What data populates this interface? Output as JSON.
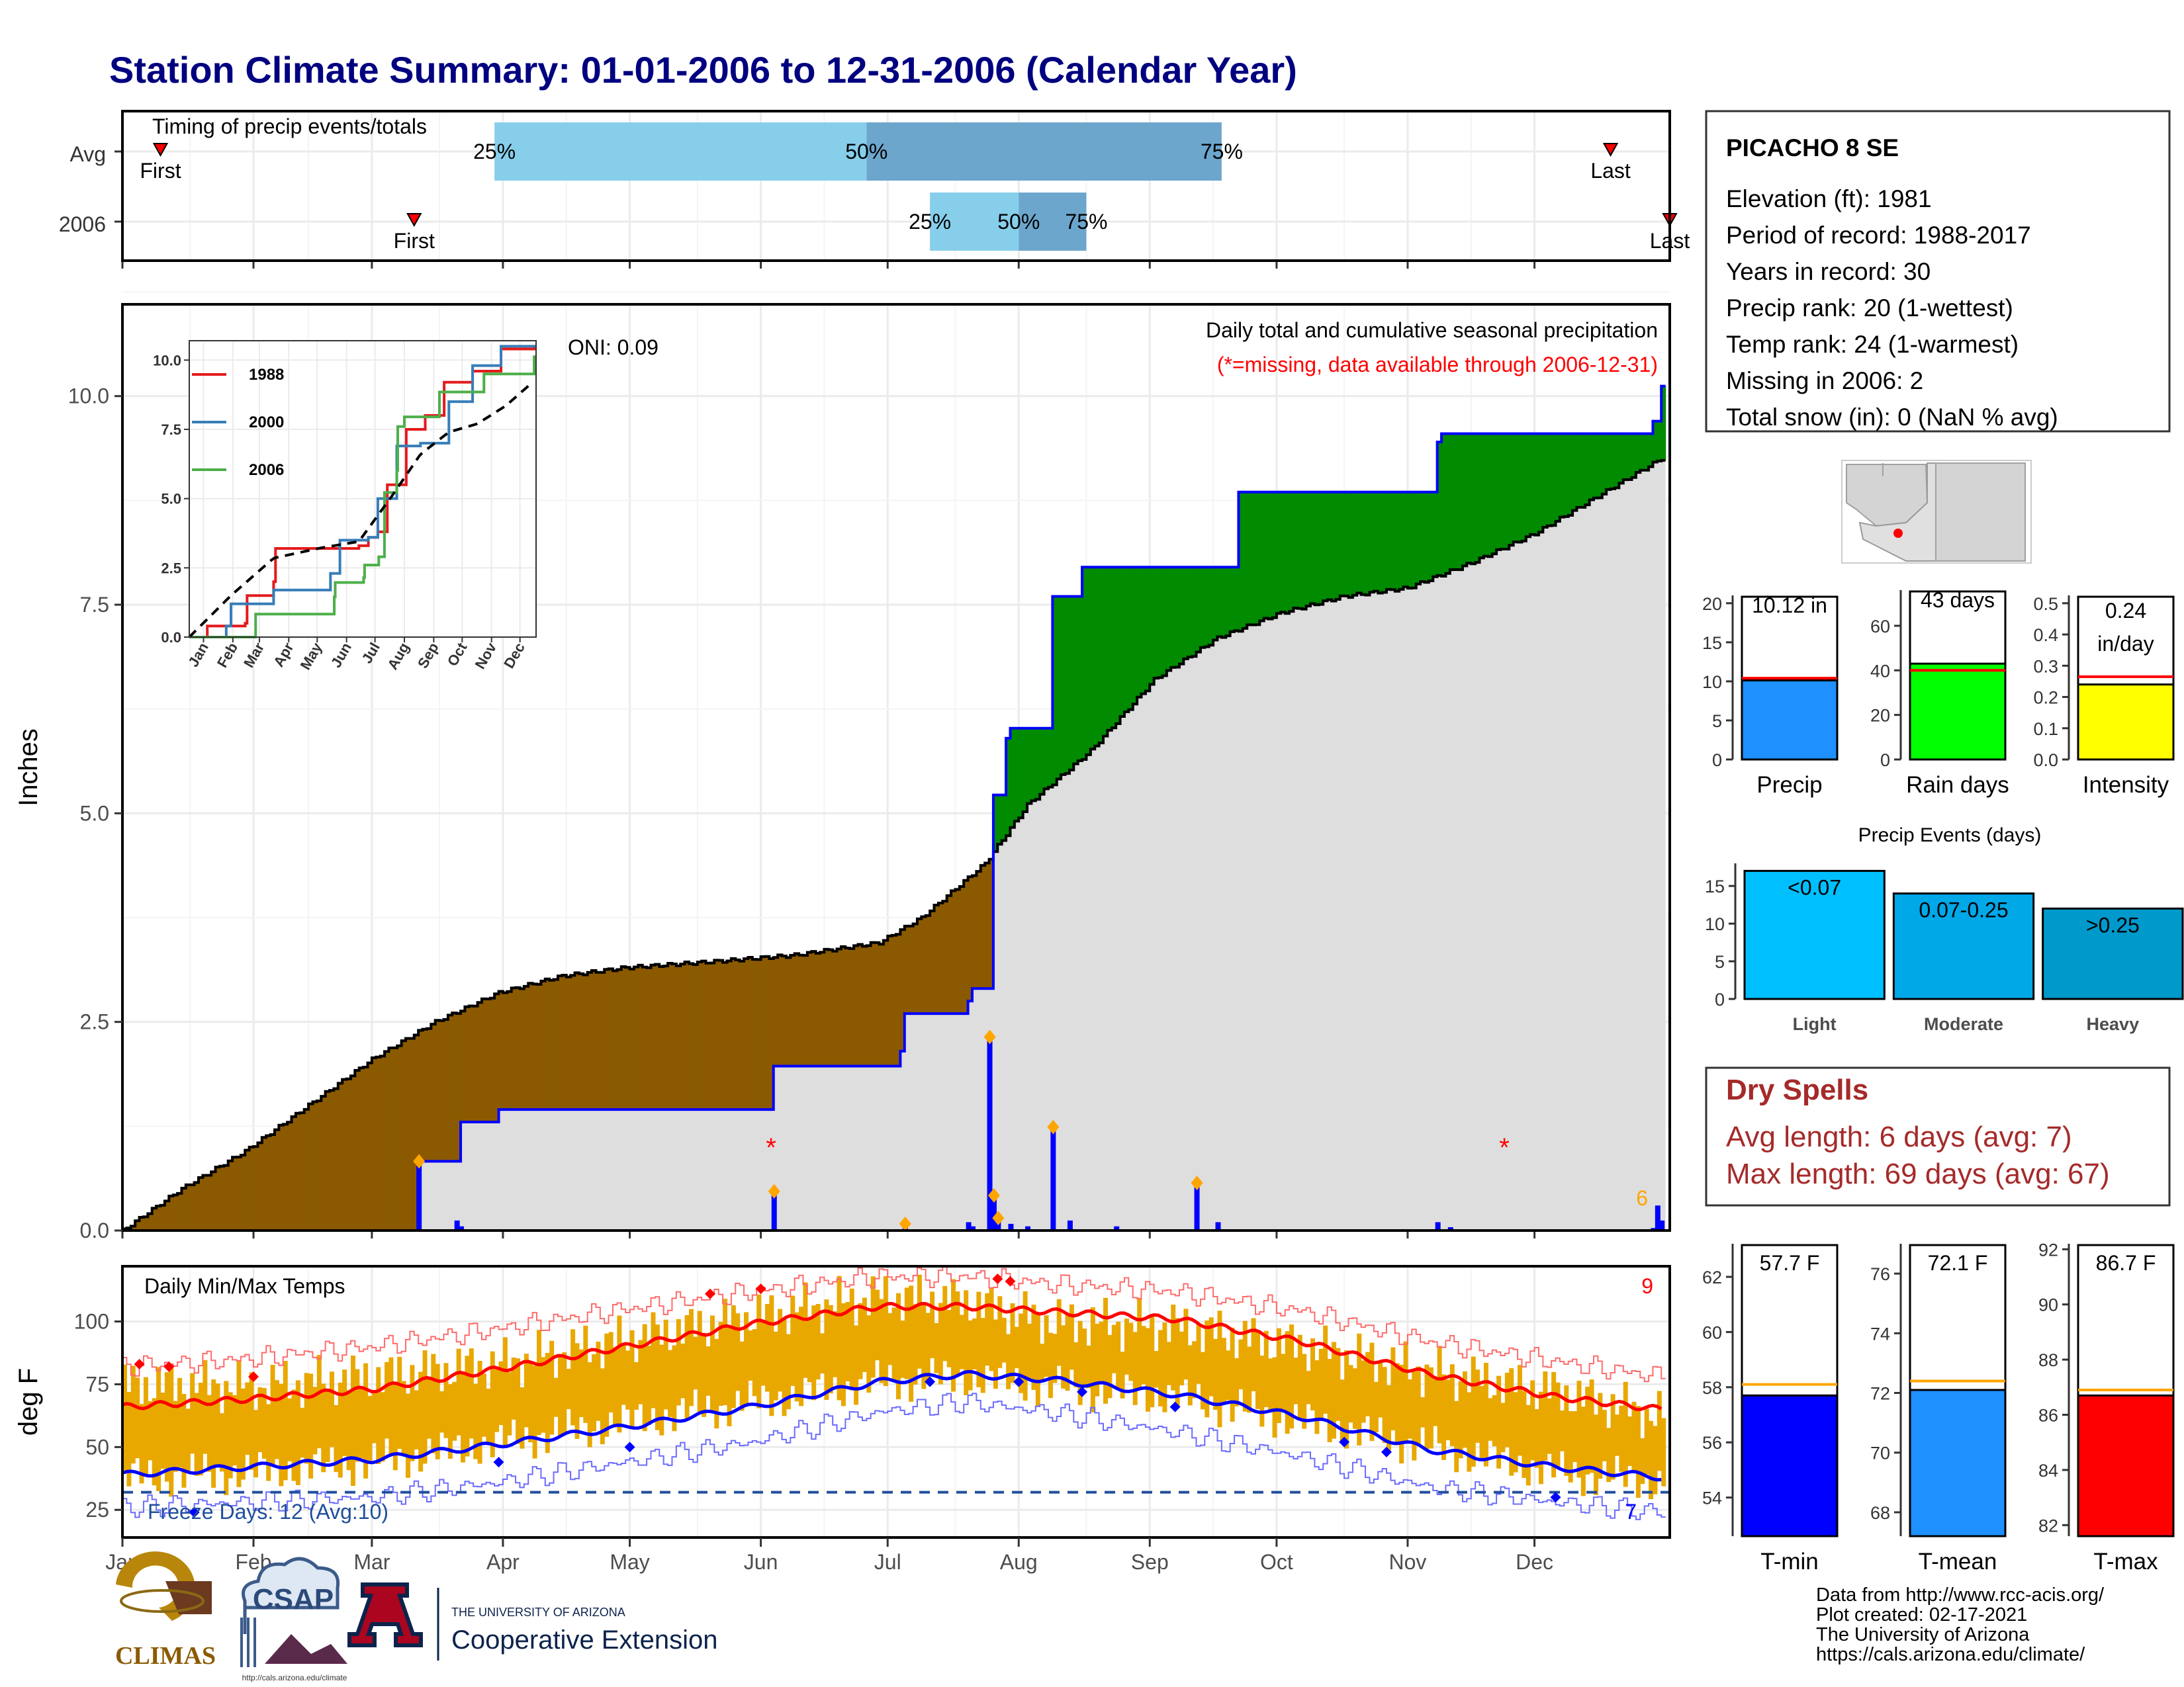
{
  "title": "Station Climate Summary: 01-01-2006 to 12-31-2006 (Calendar Year)",
  "timing_panel": {
    "title": "Timing of precip events/totals",
    "rows": [
      {
        "label": "Avg",
        "first_label": "First",
        "last_label": "Last",
        "first_doy": 10,
        "last_doy": 353,
        "q25_doy": 89,
        "q50_doy": 177,
        "q75_doy": 261,
        "q25_label": "25%",
        "q50_label": "50%",
        "q75_label": "75%"
      },
      {
        "label": "2006",
        "first_label": "First",
        "last_label": "Last",
        "first_doy": 70,
        "last_doy": 367,
        "q25_doy": 192,
        "q50_doy": 213,
        "q75_doy": 229,
        "q25_label": "25%",
        "q50_label": "50%",
        "q75_label": "75%"
      }
    ]
  },
  "precip_panel": {
    "ylabel": "Inches",
    "oni_label": "ONI: 0.09",
    "note1": "Daily total and cumulative seasonal precipitation",
    "note2": "(*=missing, data available through 2006-12-31)",
    "missing_mark": "*",
    "freeze_count_label": "6",
    "yticks": [
      "0.0",
      "2.5",
      "5.0",
      "7.5",
      "10.0"
    ],
    "colors": {
      "deficit": "#8B5A00",
      "surplus": "#008B00",
      "observed_line": "#0000FF",
      "avg_fill": "#DEDEDE",
      "daily_bar": "#0000FF",
      "marker": "#FFA500",
      "missing": "#FF0000"
    }
  },
  "inset": {
    "yticks": [
      "0.0",
      "2.5",
      "5.0",
      "7.5",
      "10.0"
    ],
    "xticks": [
      "Jan",
      "Feb",
      "Mar",
      "Apr",
      "May",
      "Jun",
      "Jul",
      "Aug",
      "Sep",
      "Oct",
      "Nov",
      "Dec"
    ],
    "legend": [
      {
        "name": "1988",
        "color": "#E41A1C"
      },
      {
        "name": "2000",
        "color": "#377EB8"
      },
      {
        "name": "2006",
        "color": "#4DAF4A"
      }
    ]
  },
  "temp_panel": {
    "title": "Daily Min/Max Temps",
    "ylabel": "deg F",
    "yticks": [
      "25",
      "50",
      "75",
      "100"
    ],
    "freeze_label": "Freeze Days: 12 (Avg:10)",
    "count_top": "9",
    "count_bottom": "7",
    "colors": {
      "bar": "#E8A800",
      "max": "#FF0000",
      "min": "#0000FF"
    }
  },
  "months": [
    "Jan",
    "Feb",
    "Mar",
    "Apr",
    "May",
    "Jun",
    "Jul",
    "Aug",
    "Sep",
    "Oct",
    "Nov",
    "Dec"
  ],
  "station": {
    "name": "PICACHO 8 SE",
    "lines": [
      "Elevation (ft): 1981",
      "Period of record: 1988-2017",
      "Years in record: 30",
      "Precip rank: 20 (1-wettest)",
      "Temp rank: 24 (1-warmest)",
      "Missing in 2006: 2",
      "Total snow (in): 0 (NaN % avg)"
    ]
  },
  "dry_spells": {
    "title": "Dry Spells",
    "avg": "Avg length: 6 days (avg: 7)",
    "max": "Max length: 69 days (avg: 67)"
  },
  "events_title": "Precip Events (days)",
  "footer": [
    "Data from http://www.rcc-acis.org/",
    "Plot created: 02-17-2021",
    "The University of Arizona",
    "https://cals.arizona.edu/climate/"
  ],
  "logos": {
    "climas": "CLIMAS",
    "csap": "CSAP",
    "csap_url": "http://cals.arizona.edu/climate",
    "ua_letter": "A",
    "ua_line1": "THE UNIVERSITY OF ARIZONA",
    "ua_line2": "Cooperative Extension"
  },
  "chart_data": [
    {
      "type": "line",
      "title": "Daily total and cumulative seasonal precipitation",
      "ylabel": "Inches",
      "ylim": [
        0,
        11
      ],
      "x_unit": "day of year",
      "series": [
        {
          "name": "2006 cumulative",
          "x": [
            1,
            70,
            71,
            80,
            81,
            90,
            154,
            155,
            185,
            186,
            201,
            202,
            206,
            207,
            210,
            211,
            220,
            221,
            228,
            265,
            266,
            312,
            313,
            363,
            365
          ],
          "values": [
            0,
            0,
            0.83,
            0.83,
            1.3,
            1.45,
            1.45,
            1.97,
            2.15,
            2.6,
            2.75,
            2.9,
            2.9,
            5.22,
            5.9,
            6.02,
            6.02,
            7.6,
            7.95,
            8.85,
            8.85,
            9.45,
            9.55,
            9.7,
            10.12
          ]
        },
        {
          "name": "Average cumulative",
          "x": [
            1,
            15,
            30,
            45,
            60,
            75,
            90,
            105,
            120,
            140,
            160,
            180,
            190,
            205,
            215,
            230,
            245,
            260,
            275,
            290,
            305,
            320,
            335,
            350,
            365
          ],
          "values": [
            0,
            0.5,
            0.95,
            1.5,
            2.05,
            2.5,
            2.85,
            3.05,
            3.15,
            3.22,
            3.3,
            3.45,
            3.75,
            4.4,
            5.1,
            5.75,
            6.6,
            7.1,
            7.4,
            7.6,
            7.7,
            8.0,
            8.35,
            8.8,
            9.25
          ]
        },
        {
          "name": "2006 daily",
          "x": [
            71,
            80,
            81,
            155,
            186,
            201,
            202,
            206,
            207,
            208,
            211,
            215,
            221,
            225,
            236,
            255,
            260,
            312,
            315,
            363,
            364,
            365
          ],
          "values": [
            0.83,
            0.12,
            0.05,
            0.47,
            0.08,
            0.1,
            0.05,
            2.32,
            0.42,
            0.15,
            0.08,
            0.05,
            1.24,
            0.12,
            0.05,
            0.57,
            0.1,
            0.1,
            0.04,
            0.03,
            0.3,
            0.12
          ]
        }
      ],
      "missing_doy": [
        156,
        341
      ]
    },
    {
      "type": "line",
      "title": "Inset: cumulative precipitation by year",
      "ylim": [
        0,
        10.5
      ],
      "x_unit": "day of year",
      "series": [
        {
          "name": "1988",
          "x": [
            1,
            20,
            60,
            62,
            90,
            92,
            180,
            190,
            200,
            210,
            230,
            250,
            270,
            300,
            330,
            365
          ],
          "values": [
            0,
            0.4,
            0.5,
            1.5,
            2.0,
            3.2,
            3.3,
            3.6,
            3.8,
            5.5,
            7.5,
            8.0,
            9.2,
            9.6,
            10.4,
            10.5
          ]
        },
        {
          "name": "2000",
          "x": [
            1,
            40,
            45,
            90,
            150,
            160,
            190,
            200,
            220,
            245,
            275,
            300,
            330,
            365
          ],
          "values": [
            0,
            0.4,
            1.2,
            1.7,
            2.3,
            3.5,
            3.6,
            5.0,
            6.9,
            7.0,
            8.5,
            9.8,
            10.5,
            10.5
          ]
        },
        {
          "name": "2006",
          "x": [
            1,
            70,
            71,
            154,
            155,
            185,
            186,
            201,
            206,
            207,
            220,
            221,
            228,
            265,
            312,
            365
          ],
          "values": [
            0,
            0,
            0.83,
            1.45,
            1.97,
            2.15,
            2.6,
            2.9,
            2.9,
            5.22,
            6.02,
            7.6,
            7.95,
            8.85,
            9.5,
            10.12
          ]
        },
        {
          "name": "Average",
          "x": [
            1,
            45,
            90,
            140,
            180,
            215,
            245,
            275,
            305,
            335,
            365
          ],
          "values": [
            0,
            1.5,
            2.85,
            3.22,
            3.45,
            5.1,
            6.6,
            7.4,
            7.7,
            8.35,
            9.25
          ]
        }
      ]
    },
    {
      "type": "area",
      "title": "Daily Min/Max Temps",
      "ylabel": "deg F",
      "ylim": [
        14,
        122
      ],
      "x_unit": "day of year",
      "freeze_threshold": 32,
      "series": [
        {
          "name": "Average max",
          "x": [
            1,
            30,
            60,
            90,
            120,
            150,
            180,
            200,
            220,
            250,
            280,
            310,
            340,
            365
          ],
          "values": [
            66,
            69,
            73,
            81,
            90,
            99,
            106,
            106,
            104,
            101,
            92,
            79,
            70,
            65
          ]
        },
        {
          "name": "Average min",
          "x": [
            1,
            30,
            60,
            90,
            120,
            150,
            180,
            200,
            220,
            250,
            280,
            310,
            340,
            365
          ],
          "values": [
            39,
            42,
            45,
            51,
            58,
            66,
            76,
            79,
            77,
            71,
            62,
            49,
            42,
            38
          ]
        },
        {
          "name": "Record max",
          "x": [
            1,
            30,
            60,
            90,
            120,
            150,
            180,
            200,
            220,
            250,
            280,
            310,
            340,
            365
          ],
          "values": [
            82,
            85,
            90,
            97,
            105,
            112,
            118,
            118,
            115,
            112,
            104,
            92,
            84,
            78
          ]
        },
        {
          "name": "Record min",
          "x": [
            1,
            30,
            60,
            90,
            120,
            150,
            180,
            200,
            220,
            250,
            280,
            310,
            340,
            365
          ],
          "values": [
            26,
            28,
            30,
            36,
            44,
            52,
            64,
            68,
            64,
            56,
            46,
            34,
            28,
            24
          ]
        },
        {
          "name": "2006 max",
          "x": [
            1,
            30,
            60,
            90,
            120,
            150,
            180,
            200,
            220,
            250,
            280,
            310,
            340,
            365
          ],
          "values": [
            75,
            74,
            78,
            83,
            93,
            102,
            110,
            108,
            100,
            98,
            90,
            80,
            72,
            62
          ]
        },
        {
          "name": "2006 min",
          "x": [
            1,
            30,
            60,
            90,
            120,
            150,
            180,
            200,
            220,
            250,
            280,
            310,
            340,
            365
          ],
          "values": [
            38,
            40,
            44,
            52,
            60,
            68,
            76,
            78,
            74,
            70,
            60,
            50,
            40,
            36
          ]
        }
      ]
    },
    {
      "type": "bar",
      "title": "Precip",
      "categories": [
        "Precip"
      ],
      "values": [
        10.12
      ],
      "average": 10.4,
      "ylim": [
        0,
        21
      ],
      "value_label": "10.12 in",
      "yticks": [
        "0",
        "5",
        "10",
        "15",
        "20"
      ],
      "xlabel": "Precip",
      "color": "#1E90FF"
    },
    {
      "type": "bar",
      "title": "Rain days",
      "categories": [
        "Rain days"
      ],
      "values": [
        43
      ],
      "average": 40,
      "ylim": [
        0,
        76
      ],
      "value_label": "43 days",
      "yticks": [
        "0",
        "20",
        "40",
        "60"
      ],
      "xlabel": "Rain days",
      "color": "#00FF00"
    },
    {
      "type": "bar",
      "title": "Intensity",
      "categories": [
        "Intensity"
      ],
      "values": [
        0.24
      ],
      "average": 0.265,
      "ylim": [
        0,
        0.525
      ],
      "value_label_1": "0.24",
      "value_label_2": "in/day",
      "yticks": [
        "0.0",
        "0.1",
        "0.2",
        "0.3",
        "0.4",
        "0.5"
      ],
      "xlabel": "Intensity",
      "color": "#FFFF00"
    },
    {
      "type": "bar",
      "title": "Precip Events (days)",
      "categories": [
        "Light",
        "Moderate",
        "Heavy"
      ],
      "values": [
        17,
        14,
        12
      ],
      "bar_labels": [
        "<0.07",
        "0.07-0.25",
        ">0.25"
      ],
      "ylim": [
        0,
        18
      ],
      "yticks": [
        "0",
        "5",
        "10",
        "15"
      ],
      "colors": [
        "#00BFFF",
        "#00A8E8",
        "#0099CC"
      ]
    },
    {
      "type": "bar",
      "title": "T-min",
      "categories": [
        "T-min"
      ],
      "values": [
        57.7
      ],
      "average": 58.1,
      "ylim": [
        52.6,
        63.2
      ],
      "value_label": "57.7 F",
      "yticks": [
        "54",
        "56",
        "58",
        "60",
        "62"
      ],
      "xlabel": "T-min",
      "color": "#0000FF"
    },
    {
      "type": "bar",
      "title": "T-mean",
      "categories": [
        "T-mean"
      ],
      "values": [
        72.1
      ],
      "average": 72.4,
      "ylim": [
        67.2,
        77.0
      ],
      "value_label": "72.1 F",
      "yticks": [
        "68",
        "70",
        "72",
        "74",
        "76"
      ],
      "xlabel": "T-mean",
      "color": "#1E90FF"
    },
    {
      "type": "bar",
      "title": "T-max",
      "categories": [
        "T-max"
      ],
      "values": [
        86.7
      ],
      "average": 86.9,
      "ylim": [
        81.6,
        92.2
      ],
      "value_label": "86.7 F",
      "yticks": [
        "82",
        "84",
        "86",
        "88",
        "90",
        "92"
      ],
      "xlabel": "T-max",
      "color": "#FF0000"
    }
  ]
}
